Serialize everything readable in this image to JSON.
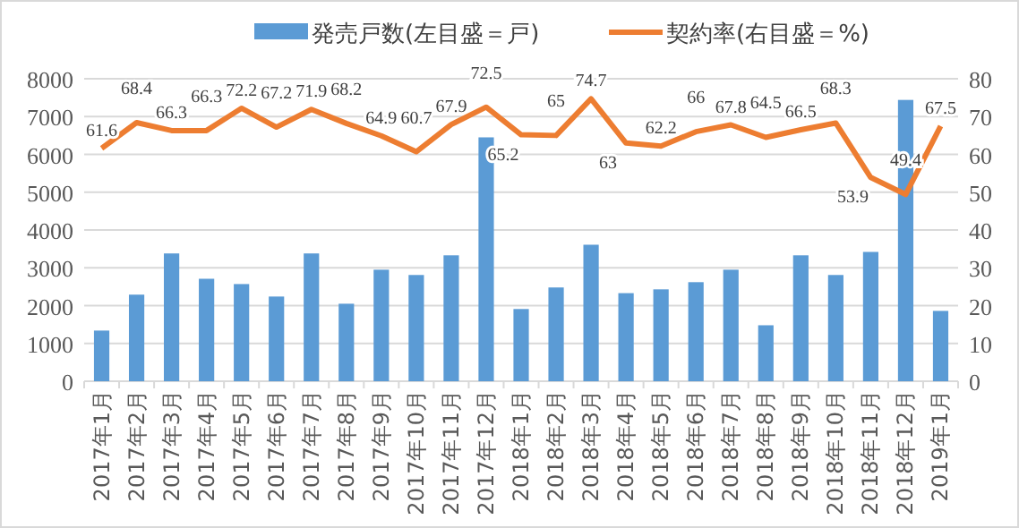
{
  "chart_data": {
    "type": "bar",
    "categories": [
      "2017年1月",
      "2017年2月",
      "2017年3月",
      "2017年4月",
      "2017年5月",
      "2017年6月",
      "2017年7月",
      "2017年8月",
      "2017年9月",
      "2017年10月",
      "2017年11月",
      "2017年12月",
      "2018年1月",
      "2018年2月",
      "2018年3月",
      "2018年4月",
      "2018年5月",
      "2018年6月",
      "2018年7月",
      "2018年8月",
      "2018年9月",
      "2018年10月",
      "2018年11月",
      "2018年12月",
      "2019年1月"
    ],
    "series": [
      {
        "name": "発売戸数(左目盛＝戸)",
        "color": "#5b9bd5",
        "values": [
          1340,
          2290,
          3380,
          2710,
          2570,
          2240,
          3380,
          2050,
          2950,
          2810,
          3330,
          6450,
          1910,
          2480,
          3610,
          2330,
          2430,
          2620,
          2950,
          1480,
          3330,
          2810,
          3420,
          7440,
          1860
        ]
      },
      {
        "name": "契約率(右目盛＝%)",
        "type": "line",
        "axis": "y2",
        "color": "#ed7d31",
        "values": [
          61.6,
          68.4,
          66.3,
          66.3,
          72.2,
          67.2,
          71.9,
          68.2,
          64.9,
          60.7,
          67.9,
          72.5,
          65.2,
          65,
          74.7,
          63,
          62.2,
          66,
          67.8,
          64.5,
          66.5,
          68.3,
          53.9,
          49.4,
          67.5
        ],
        "value_labels": [
          "61.6",
          "68.4",
          "66.3",
          "66.3",
          "72.2",
          "67.2",
          "71.9",
          "68.2",
          "64.9",
          "60.7",
          "67.9",
          "72.5",
          "65.2",
          "65",
          "74.7",
          "63",
          "62.2",
          "66",
          "67.8",
          "64.5",
          "66.5",
          "68.3",
          "53.9",
          "49.4",
          "67.5"
        ]
      }
    ],
    "ylim": [
      0,
      8000
    ],
    "yticks": [
      0,
      1000,
      2000,
      3000,
      4000,
      5000,
      6000,
      7000,
      8000
    ],
    "y2lim": [
      0,
      80
    ],
    "y2ticks": [
      0,
      10,
      20,
      30,
      40,
      50,
      60,
      70,
      80
    ],
    "grid": "y",
    "legend": "top",
    "marker": "none",
    "line_style": "solid"
  }
}
